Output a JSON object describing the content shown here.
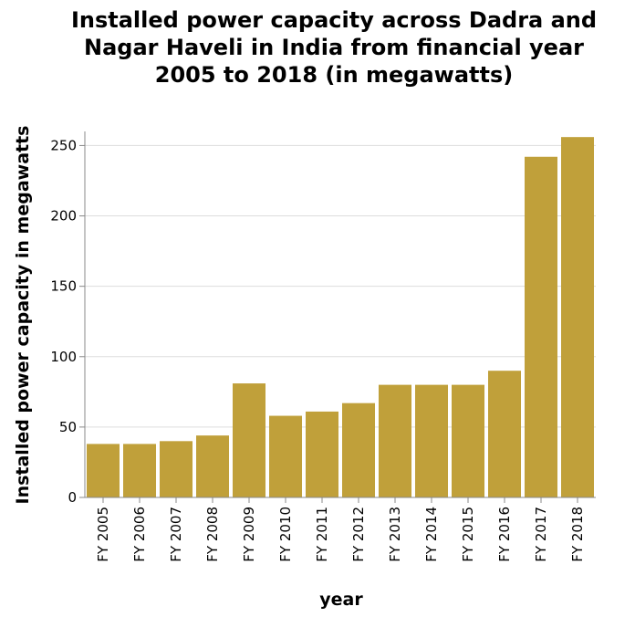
{
  "chart_data": {
    "type": "bar",
    "title_lines": [
      "Installed power capacity across Dadra and",
      "Nagar Haveli in India from financial year",
      "2005 to 2018 (in megawatts)"
    ],
    "xlabel": "year",
    "ylabel": "Installed power capacity in megawatts",
    "categories": [
      "FY 2005",
      "FY 2006",
      "FY 2007",
      "FY 2008",
      "FY 2009",
      "FY 2010",
      "FY 2011",
      "FY 2012",
      "FY 2013",
      "FY 2014",
      "FY 2015",
      "FY 2016",
      "FY 2017",
      "FY 2018"
    ],
    "values": [
      38,
      38,
      40,
      44,
      81,
      58,
      61,
      67,
      80,
      80,
      80,
      90,
      242,
      256
    ],
    "ylim": [
      0,
      260
    ],
    "yticks": [
      0,
      50,
      100,
      150,
      200,
      250
    ],
    "grid": true,
    "bar_color": "#c0a03a"
  }
}
